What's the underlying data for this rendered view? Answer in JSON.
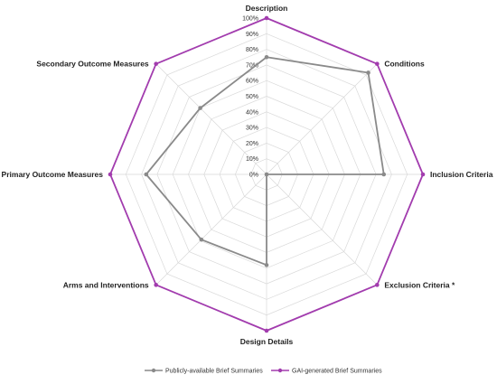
{
  "chart_data": {
    "type": "radar",
    "categories": [
      "Description",
      "Conditions",
      "Inclusion Criteria",
      "Exclusion Criteria *",
      "Design Details",
      "Arms and Interventions",
      "Primary Outcome Measures",
      "Secondary Outcome Measures"
    ],
    "ticks": [
      "0%",
      "10%",
      "20%",
      "30%",
      "40%",
      "50%",
      "60%",
      "70%",
      "80%",
      "90%",
      "100%"
    ],
    "range": [
      0,
      100
    ],
    "grid": true,
    "legend_position": "bottom",
    "series": [
      {
        "name": "Publicly-available Brief Summaries",
        "color": "#8a8a8a",
        "values": [
          75,
          92,
          75,
          0,
          58,
          59,
          77,
          60
        ]
      },
      {
        "name": "GAI-generated Brief Summaries",
        "color": "#a23cae",
        "values": [
          100,
          100,
          100,
          100,
          100,
          100,
          100,
          100
        ]
      }
    ]
  }
}
